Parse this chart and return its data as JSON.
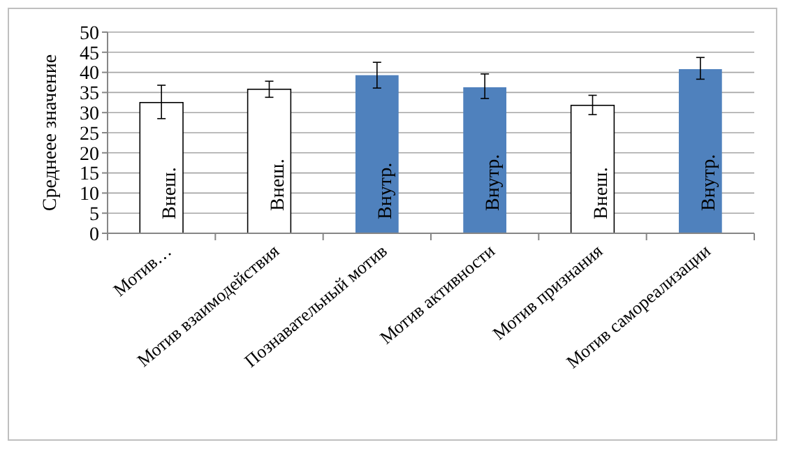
{
  "chart_data": {
    "type": "bar",
    "ylabel": "Среднеее значение",
    "categories": [
      "Мотив…",
      "Мотив взаимодействия",
      "Познавательный мотив",
      "Мотив активности",
      "Мотив признания",
      "Мотив самореализации"
    ],
    "values": [
      32.5,
      35.8,
      39.3,
      36.3,
      31.8,
      40.8
    ],
    "colors": [
      "#ffffff",
      "#ffffff",
      "#4f81bd",
      "#4f81bd",
      "#ffffff",
      "#4f81bd"
    ],
    "errors": [
      [
        28.5,
        36.8
      ],
      [
        33.8,
        37.8
      ],
      [
        36.1,
        42.5
      ],
      [
        33.5,
        39.6
      ],
      [
        29.5,
        34.3
      ],
      [
        38.3,
        43.7
      ]
    ],
    "ylim": [
      0,
      50
    ],
    "yticks": [
      0,
      5,
      10,
      15,
      20,
      25,
      30,
      35,
      40,
      45,
      50
    ],
    "grid": "y",
    "value_labels": [
      "Внеш.",
      "Внеш.",
      "Внутр.",
      "Внутр.",
      "Внеш.",
      "Внутр."
    ]
  }
}
